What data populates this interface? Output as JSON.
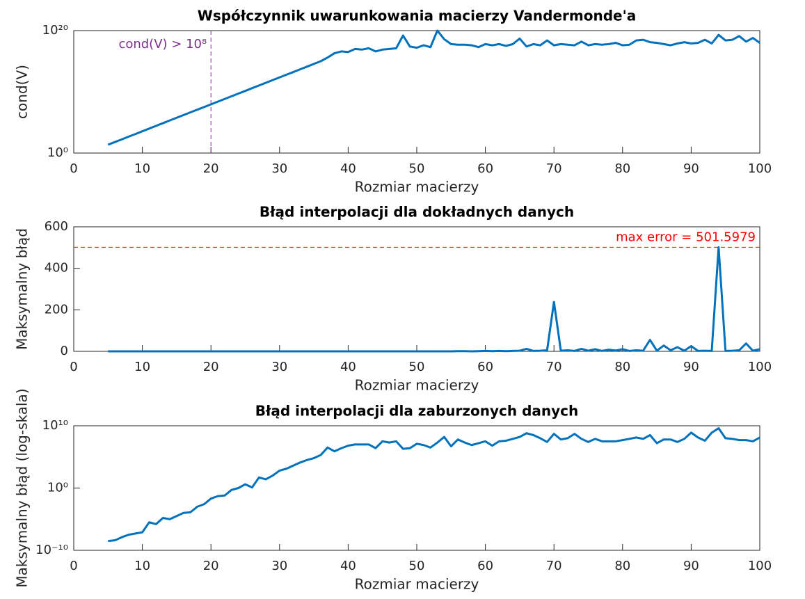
{
  "chart_data": [
    {
      "type": "line",
      "title": "Współczynnik uwarunkowania macierzy Vandermonde'a",
      "xlabel": "Rozmiar macierzy",
      "ylabel": "cond(V)",
      "log_scale": true,
      "color": "#0072bd",
      "xlim": [
        0,
        100
      ],
      "xticks": [
        0,
        10,
        20,
        30,
        40,
        50,
        60,
        70,
        80,
        90,
        100
      ],
      "ylim": [
        1,
        1e+20
      ],
      "yticks": [
        {
          "value": 1,
          "label": "10⁰"
        },
        {
          "value": 1e+20,
          "label": "10²⁰"
        }
      ],
      "reference_lines": [
        {
          "x": 20,
          "color": "#7e2f8e",
          "label": "cond(V) > 10⁸"
        }
      ],
      "x": [
        5,
        6,
        7,
        8,
        9,
        10,
        11,
        12,
        13,
        14,
        15,
        16,
        17,
        18,
        19,
        20,
        21,
        22,
        23,
        24,
        25,
        26,
        27,
        28,
        29,
        30,
        31,
        32,
        33,
        34,
        35,
        36,
        37,
        38,
        39,
        40,
        41,
        42,
        43,
        44,
        45,
        46,
        47,
        48,
        49,
        50,
        51,
        52,
        53,
        54,
        55,
        56,
        57,
        58,
        59,
        60,
        61,
        62,
        63,
        64,
        65,
        66,
        67,
        68,
        69,
        70,
        71,
        72,
        73,
        74,
        75,
        76,
        77,
        78,
        79,
        80,
        81,
        82,
        83,
        84,
        85,
        86,
        87,
        88,
        89,
        90,
        91,
        92,
        93,
        94,
        95,
        96,
        97,
        98,
        99,
        100
      ],
      "values": [
        23,
        63,
        170,
        480,
        1300,
        3600,
        10000.0,
        28000.0,
        76000.0,
        210000.0,
        580000.0,
        1600000.0,
        4400000.0,
        12000000.0,
        33000000.0,
        91000000.0,
        250000000.0,
        690000000.0,
        1900000000.0,
        5200000000.0,
        14000000000.0,
        40000000000.0,
        110000000000.0,
        300000000000.0,
        830000000000.0,
        2300000000000.0,
        6300000000000.0,
        17000000000000.0,
        48000000000000.0,
        130000000000000.0,
        360000000000000.0,
        1000000000000000.0,
        4000000000000000.0,
        2e+16,
        4e+16,
        3.2e+16,
        1e+17,
        7.9e+16,
        1.3e+17,
        4e+16,
        7.9e+16,
        1e+17,
        1.3e+17,
        1.6e+19,
        2.5e+17,
        1.6e+17,
        4e+17,
        2e+17,
        1e+20,
        4e+18,
        6.3e+17,
        5e+17,
        5e+17,
        4e+17,
        2e+17,
        6.3e+17,
        4e+17,
        6.3e+17,
        3.2e+17,
        6.3e+17,
        5e+18,
        2.5e+17,
        6.3e+17,
        4e+17,
        2.5e+18,
        4e+17,
        6.3e+17,
        5e+17,
        4e+17,
        1.6e+18,
        4e+17,
        6.3e+17,
        5e+17,
        6.3e+17,
        1e+18,
        4e+17,
        5e+17,
        2.5e+18,
        3.2e+18,
        1.3e+18,
        1e+18,
        6.3e+17,
        4e+17,
        7.9e+17,
        1.3e+18,
        7.9e+17,
        1e+18,
        3.2e+18,
        7.9e+17,
        2e+19,
        2.5e+18,
        3.2e+18,
        1.3e+19,
        1.6e+18,
        6.3e+18,
        1e+18
      ]
    },
    {
      "type": "line",
      "title": "Błąd interpolacji dla dokładnych danych",
      "xlabel": "Rozmiar macierzy",
      "ylabel": "Maksymalny błąd",
      "log_scale": false,
      "color": "#0072bd",
      "xlim": [
        0,
        100
      ],
      "xticks": [
        0,
        10,
        20,
        30,
        40,
        50,
        60,
        70,
        80,
        90,
        100
      ],
      "ylim": [
        0,
        600
      ],
      "yticks": [
        0,
        200,
        400,
        600
      ],
      "reference_lines": [
        {
          "y": 501.5979,
          "color": "#ff0000",
          "label": "max error = 501.5979"
        }
      ],
      "x": [
        5,
        6,
        7,
        8,
        9,
        10,
        11,
        12,
        13,
        14,
        15,
        16,
        17,
        18,
        19,
        20,
        21,
        22,
        23,
        24,
        25,
        26,
        27,
        28,
        29,
        30,
        31,
        32,
        33,
        34,
        35,
        36,
        37,
        38,
        39,
        40,
        41,
        42,
        43,
        44,
        45,
        46,
        47,
        48,
        49,
        50,
        51,
        52,
        53,
        54,
        55,
        56,
        57,
        58,
        59,
        60,
        61,
        62,
        63,
        64,
        65,
        66,
        67,
        68,
        69,
        70,
        71,
        72,
        73,
        74,
        75,
        76,
        77,
        78,
        79,
        80,
        81,
        82,
        83,
        84,
        85,
        86,
        87,
        88,
        89,
        90,
        91,
        92,
        93,
        94,
        95,
        96,
        97,
        98,
        99,
        100
      ],
      "values": [
        0,
        0,
        0,
        0,
        0,
        0,
        0,
        0,
        0,
        0,
        0,
        0,
        0,
        0,
        0,
        0,
        0,
        0,
        0,
        0,
        0,
        0,
        0,
        0,
        0,
        0,
        0,
        0,
        0,
        0,
        0,
        0,
        0,
        0,
        0,
        0,
        0,
        0,
        0,
        0,
        0,
        0,
        0,
        0,
        0,
        0,
        0,
        0,
        0,
        0,
        0,
        1,
        1,
        0,
        1,
        2,
        1,
        2,
        1,
        2,
        3,
        12,
        2,
        3,
        5,
        238,
        3,
        5,
        2,
        12,
        3,
        10,
        2,
        8,
        4,
        10,
        2,
        5,
        3,
        55,
        3,
        28,
        5,
        20,
        3,
        25,
        2,
        3,
        2,
        501.5979,
        2,
        3,
        5,
        38,
        3,
        10
      ]
    },
    {
      "type": "line",
      "title": "Błąd interpolacji dla zaburzonych danych",
      "xlabel": "Rozmiar macierzy",
      "ylabel": "Maksymalny błąd (log-skala)",
      "log_scale": true,
      "color": "#0072bd",
      "xlim": [
        0,
        100
      ],
      "xticks": [
        0,
        10,
        20,
        30,
        40,
        50,
        60,
        70,
        80,
        90,
        100
      ],
      "ylim": [
        1e-10,
        10000000000.0
      ],
      "yticks": [
        {
          "value": 1e-10,
          "label": "10⁻¹⁰"
        },
        {
          "value": 1,
          "label": "10⁰"
        },
        {
          "value": 10000000000.0,
          "label": "10¹⁰"
        }
      ],
      "x": [
        5,
        6,
        7,
        8,
        9,
        10,
        11,
        12,
        13,
        14,
        15,
        16,
        17,
        18,
        19,
        20,
        21,
        22,
        23,
        24,
        25,
        26,
        27,
        28,
        29,
        30,
        31,
        32,
        33,
        34,
        35,
        36,
        37,
        38,
        39,
        40,
        41,
        42,
        43,
        44,
        45,
        46,
        47,
        48,
        49,
        50,
        51,
        52,
        53,
        54,
        55,
        56,
        57,
        58,
        59,
        60,
        61,
        62,
        63,
        64,
        65,
        66,
        67,
        68,
        69,
        70,
        71,
        72,
        73,
        74,
        75,
        76,
        77,
        78,
        79,
        80,
        81,
        82,
        83,
        84,
        85,
        86,
        87,
        88,
        89,
        90,
        91,
        92,
        93,
        94,
        95,
        96,
        97,
        98,
        99,
        100
      ],
      "values": [
        3.16e-09,
        3.98e-09,
        1.26e-08,
        3.16e-08,
        5.01e-08,
        7.94e-08,
        3.16e-06,
        1.58e-06,
        1.58e-05,
        1e-05,
        3.16e-05,
        0.0001,
        0.000126,
        0.001,
        0.00251,
        0.02,
        0.05,
        0.063,
        0.5,
        1,
        4,
        1.26,
        50,
        25,
        100,
        630,
        1260,
        4000,
        12600,
        31600,
        63000,
        200000.0,
        3200000.0,
        790000.0,
        2500000.0,
        6300000.0,
        10000000.0,
        10000000.0,
        10000000.0,
        2500000.0,
        32000000.0,
        20000000.0,
        32000000.0,
        2000000.0,
        2500000.0,
        13000000.0,
        7900000.0,
        3200000.0,
        20000000.0,
        160000000.0,
        5000000.0,
        63000000.0,
        20000000.0,
        7900000.0,
        16000000.0,
        32000000.0,
        6300000.0,
        32000000.0,
        40000000.0,
        79000000.0,
        160000000.0,
        630000000.0,
        320000000.0,
        100000000.0,
        25000000.0,
        500000000.0,
        63000000.0,
        100000000.0,
        500000000.0,
        79000000.0,
        25000000.0,
        79000000.0,
        32000000.0,
        32000000.0,
        32000000.0,
        50000000.0,
        79000000.0,
        130000000.0,
        79000000.0,
        320000000.0,
        16000000.0,
        63000000.0,
        63000000.0,
        25000000.0,
        79000000.0,
        790000000.0,
        130000000.0,
        40000000.0,
        790000000.0,
        4000000000.0,
        100000000.0,
        79000000.0,
        50000000.0,
        50000000.0,
        32000000.0,
        130000000.0
      ]
    }
  ]
}
